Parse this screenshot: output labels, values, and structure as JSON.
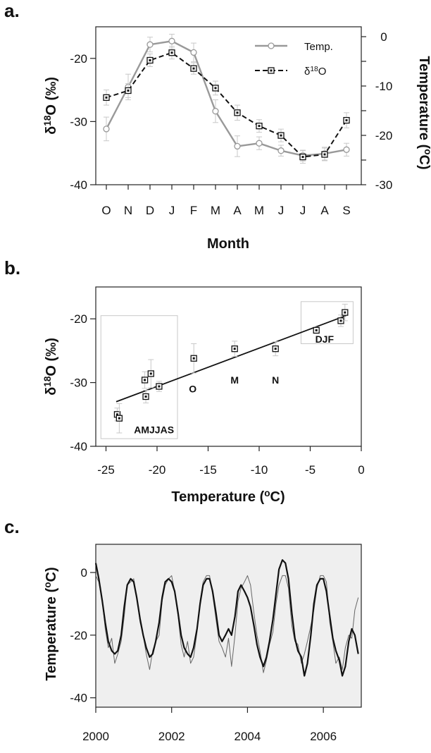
{
  "panels": {
    "a": "a.",
    "b": "b.",
    "c": "c."
  },
  "chart_data": [
    {
      "type": "line",
      "xlabel": "Month",
      "ylabel_left": "δ18O (‰)",
      "ylabel_right": "Temperature (°C)",
      "categories": [
        "O",
        "N",
        "D",
        "J",
        "F",
        "M",
        "A",
        "M",
        "J",
        "J",
        "A",
        "S"
      ],
      "ylim_left": [
        -40,
        -15
      ],
      "yticks_left": [
        -20,
        -30,
        -40
      ],
      "ylim_right": [
        -30,
        2
      ],
      "yticks_right": [
        0,
        -10,
        -20,
        -30
      ],
      "legend_position": "top-right",
      "series": [
        {
          "name": "Temp.",
          "axis": "right",
          "color": "#999999",
          "marker": "circle",
          "values": [
            -18.7,
            -10.2,
            -1.6,
            -0.9,
            -3.2,
            -15.1,
            -22.2,
            -21.6,
            -23.1,
            -24.1,
            -23.7,
            -22.9
          ],
          "error": [
            2.4,
            2.6,
            1.5,
            1.4,
            1.9,
            2.3,
            2.1,
            1.3,
            1.1,
            1.1,
            1.3,
            1.3
          ]
        },
        {
          "name": "δ18O",
          "axis": "left",
          "color": "#111111",
          "marker": "square",
          "values": [
            -26.2,
            -25.1,
            -20.3,
            -19.1,
            -21.6,
            -24.7,
            -28.6,
            -30.7,
            -32.2,
            -35.6,
            -35.2,
            -29.8
          ],
          "error": [
            1.2,
            1.1,
            1.0,
            1.0,
            0.9,
            1.1,
            1.2,
            1.0,
            1.0,
            1.0,
            1.0,
            1.2
          ]
        }
      ]
    },
    {
      "type": "scatter",
      "xlabel": "Temperature (oC)",
      "ylabel": "δ18O (‰)",
      "xlim": [
        -26,
        0
      ],
      "xticks": [
        -25,
        -20,
        -15,
        -10,
        -5,
        0
      ],
      "ylim": [
        -40,
        -15
      ],
      "yticks": [
        -20,
        -30,
        -40
      ],
      "points": [
        {
          "x": -23.9,
          "y": -35.0,
          "err": 1.0
        },
        {
          "x": -23.7,
          "y": -35.6,
          "err": 2.3
        },
        {
          "x": -21.2,
          "y": -29.6,
          "err": 1.3
        },
        {
          "x": -21.1,
          "y": -32.2,
          "err": 1.0
        },
        {
          "x": -20.6,
          "y": -28.6,
          "err": 2.2
        },
        {
          "x": -19.8,
          "y": -30.6,
          "err": 0.8
        },
        {
          "x": -16.4,
          "y": -26.2,
          "err": 2.3
        },
        {
          "x": -12.4,
          "y": -24.7,
          "err": 1.2
        },
        {
          "x": -8.4,
          "y": -24.7,
          "err": 1.1
        },
        {
          "x": -4.4,
          "y": -21.8,
          "err": 0.5
        },
        {
          "x": -2.0,
          "y": -20.3,
          "err": 0.9
        },
        {
          "x": -1.6,
          "y": -19.0,
          "err": 1.3
        }
      ],
      "fit": {
        "x": [
          -24,
          -1.5
        ],
        "y": [
          -33.0,
          -19.5
        ]
      },
      "point_labels": [
        {
          "text": "O",
          "x": -16.5,
          "y": -31.0
        },
        {
          "text": "M",
          "x": -12.4,
          "y": -29.6
        },
        {
          "text": "N",
          "x": -8.4,
          "y": -29.6
        },
        {
          "text": "DJF",
          "x": -3.6,
          "y": -23.2
        },
        {
          "text": "AMJJAS",
          "x": -20.3,
          "y": -37.4
        }
      ],
      "group_boxes": [
        {
          "label": "AMJJAS",
          "x": [
            -25.5,
            -18.0
          ],
          "y": [
            -19.5,
            -38.8
          ]
        },
        {
          "label": "DJF",
          "x": [
            -5.9,
            -0.8
          ],
          "y": [
            -17.3,
            -23.9
          ]
        }
      ]
    },
    {
      "type": "line",
      "ylabel": "Temperature (oC)",
      "xlim": [
        2000,
        2007
      ],
      "xticks": [
        2000,
        2002,
        2004,
        2006
      ],
      "ylim": [
        -43,
        9
      ],
      "yticks": [
        0,
        -20,
        -40
      ],
      "series": [
        {
          "color": "#666666",
          "x": [
            2000.0,
            2000.08,
            2000.17,
            2000.25,
            2000.33,
            2000.42,
            2000.5,
            2000.58,
            2000.67,
            2000.75,
            2000.83,
            2000.92,
            2001.0,
            2001.08,
            2001.17,
            2001.25,
            2001.33,
            2001.42,
            2001.5,
            2001.58,
            2001.67,
            2001.75,
            2001.83,
            2001.92,
            2002.0,
            2002.08,
            2002.17,
            2002.25,
            2002.33,
            2002.42,
            2002.5,
            2002.58,
            2002.67,
            2002.75,
            2002.83,
            2002.92,
            2003.0,
            2003.08,
            2003.17,
            2003.25,
            2003.33,
            2003.42,
            2003.5,
            2003.58,
            2003.67,
            2003.75,
            2003.83,
            2003.92,
            2004.0,
            2004.08,
            2004.17,
            2004.25,
            2004.33,
            2004.42,
            2004.5,
            2004.58,
            2004.67,
            2004.75,
            2004.83,
            2004.92,
            2005.0,
            2005.08,
            2005.17,
            2005.25,
            2005.33,
            2005.42,
            2005.5,
            2005.58,
            2005.67,
            2005.75,
            2005.83,
            2005.92,
            2006.0,
            2006.08,
            2006.17,
            2006.25,
            2006.33,
            2006.42,
            2006.5,
            2006.58,
            2006.67,
            2006.75,
            2006.83,
            2006.92
          ],
          "values": [
            -1,
            -3,
            -9,
            -18,
            -24,
            -21,
            -29,
            -26,
            -22,
            -14,
            -4,
            -3,
            -2,
            -8,
            -16,
            -20,
            -26,
            -31,
            -25,
            -22,
            -20,
            -9,
            -4,
            -2,
            -1,
            -6,
            -14,
            -23,
            -27,
            -22,
            -29,
            -27,
            -19,
            -9,
            -3,
            -1,
            -1,
            -7,
            -15,
            -22,
            -24,
            -27,
            -21,
            -30,
            -20,
            -9,
            -5,
            -3,
            -1,
            -4,
            -13,
            -20,
            -25,
            -32,
            -28,
            -23,
            -19,
            -10,
            -4,
            -1,
            -1,
            -5,
            -17,
            -22,
            -23,
            -29,
            -26,
            -22,
            -17,
            -12,
            -5,
            -1,
            -1,
            -3,
            -16,
            -22,
            -29,
            -27,
            -31,
            -24,
            -20,
            -21,
            -12,
            -8
          ]
        },
        {
          "color": "#111111",
          "x": [
            2000.0,
            2000.08,
            2000.17,
            2000.25,
            2000.33,
            2000.42,
            2000.5,
            2000.58,
            2000.67,
            2000.75,
            2000.83,
            2000.92,
            2001.0,
            2001.08,
            2001.17,
            2001.25,
            2001.33,
            2001.42,
            2001.5,
            2001.58,
            2001.67,
            2001.75,
            2001.83,
            2001.92,
            2002.0,
            2002.08,
            2002.17,
            2002.25,
            2002.33,
            2002.42,
            2002.5,
            2002.58,
            2002.67,
            2002.75,
            2002.83,
            2002.92,
            2003.0,
            2003.08,
            2003.17,
            2003.25,
            2003.33,
            2003.42,
            2003.5,
            2003.58,
            2003.67,
            2003.75,
            2003.83,
            2003.92,
            2004.0,
            2004.08,
            2004.17,
            2004.25,
            2004.33,
            2004.42,
            2004.5,
            2004.58,
            2004.67,
            2004.75,
            2004.83,
            2004.92,
            2005.0,
            2005.08,
            2005.17,
            2005.25,
            2005.33,
            2005.42,
            2005.5,
            2005.58,
            2005.67,
            2005.75,
            2005.83,
            2005.92,
            2006.0,
            2006.08,
            2006.17,
            2006.25,
            2006.33,
            2006.42,
            2006.5,
            2006.58,
            2006.67,
            2006.75,
            2006.83,
            2006.92
          ],
          "values": [
            3,
            -2,
            -9,
            -16,
            -22,
            -25,
            -26,
            -25,
            -20,
            -11,
            -4,
            -2,
            -3,
            -8,
            -15,
            -20,
            -24,
            -27,
            -26,
            -22,
            -16,
            -8,
            -3,
            -2,
            -3,
            -6,
            -13,
            -20,
            -24,
            -26,
            -27,
            -24,
            -18,
            -10,
            -4,
            -2,
            -2,
            -6,
            -13,
            -20,
            -22,
            -20,
            -18,
            -20,
            -14,
            -6,
            -4,
            -6,
            -8,
            -11,
            -17,
            -23,
            -27,
            -30,
            -27,
            -22,
            -15,
            -7,
            1,
            4,
            3,
            -2,
            -13,
            -21,
            -25,
            -27,
            -33,
            -29,
            -20,
            -10,
            -4,
            -2,
            -2,
            -6,
            -14,
            -21,
            -25,
            -28,
            -33,
            -30,
            -22,
            -18,
            -20,
            -26
          ]
        }
      ]
    }
  ]
}
